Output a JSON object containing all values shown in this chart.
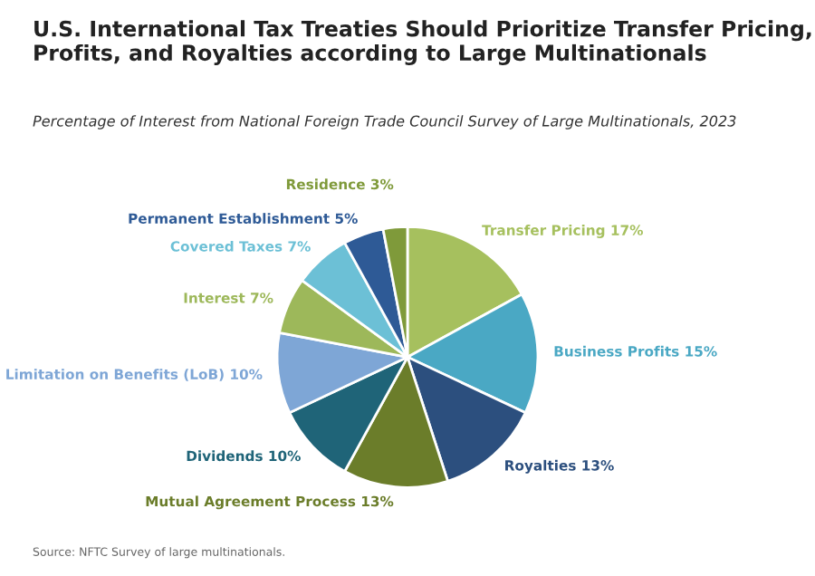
{
  "chart_data": {
    "type": "pie",
    "title": "U.S. International Tax Treaties Should Prioritize Transfer Pricing, Profits, and Royalties according to Large Multinationals",
    "subtitle": "Percentage of Interest from National Foreign Trade Council Survey of Large Multinationals, 2023",
    "categories": [
      "Transfer Pricing 17%",
      "Business Profits 15%",
      "Royalties 13%",
      "Mutual Agreement Process 13%",
      "Dividends 10%",
      "Limitation on Benefits (LoB) 10%",
      "Interest 7%",
      "Covered Taxes 7%",
      "Permanent Establishment 5%",
      "Residence 3%"
    ],
    "values": [
      17,
      15,
      13,
      13,
      10,
      10,
      7,
      7,
      5,
      3
    ],
    "colors": [
      "#a6c05e",
      "#4aa8c4",
      "#2c4f7e",
      "#6b7d2a",
      "#1f6478",
      "#7ea6d6",
      "#9db85a",
      "#6cc0d6",
      "#2e5a96",
      "#7f9a3a"
    ],
    "annotations": [
      "Source: NFTC Survey of large multinationals."
    ]
  }
}
